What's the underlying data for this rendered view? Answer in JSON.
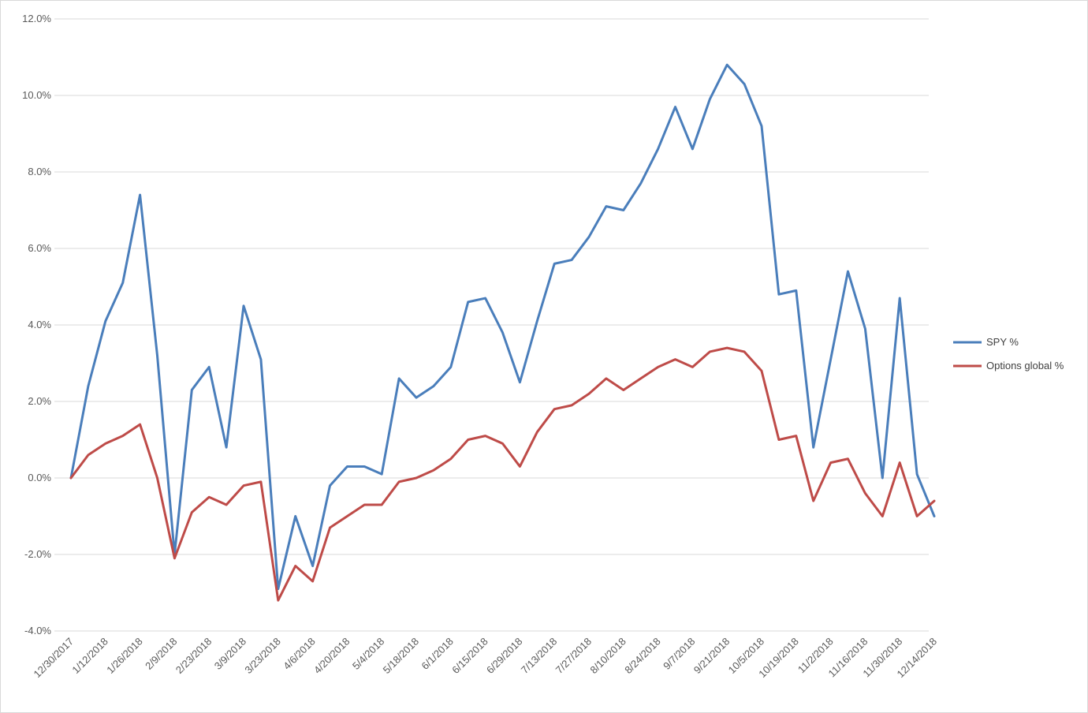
{
  "chart_data": {
    "type": "line",
    "title": "",
    "xlabel": "",
    "ylabel": "",
    "ylim": [
      -0.04,
      0.12
    ],
    "y_tick_step": 0.02,
    "y_tick_format": "percent_1dp",
    "grid": "horizontal",
    "legend_position": "right",
    "x_tick_labels": [
      "12/30/2017",
      "1/12/2018",
      "1/26/2018",
      "2/9/2018",
      "2/23/2018",
      "3/9/2018",
      "3/23/2018",
      "4/6/2018",
      "4/20/2018",
      "5/4/2018",
      "5/18/2018",
      "6/1/2018",
      "6/15/2018",
      "6/29/2018",
      "7/13/2018",
      "7/27/2018",
      "8/10/2018",
      "8/24/2018",
      "9/7/2018",
      "9/21/2018",
      "10/5/2018",
      "10/19/2018",
      "11/2/2018",
      "11/16/2018",
      "11/30/2018",
      "12/14/2018"
    ],
    "x": [
      "12/30/2017",
      "1/5/2018",
      "1/12/2018",
      "1/19/2018",
      "1/26/2018",
      "2/2/2018",
      "2/9/2018",
      "2/16/2018",
      "2/23/2018",
      "3/2/2018",
      "3/9/2018",
      "3/16/2018",
      "3/23/2018",
      "3/30/2018",
      "4/6/2018",
      "4/13/2018",
      "4/20/2018",
      "4/27/2018",
      "5/4/2018",
      "5/11/2018",
      "5/18/2018",
      "5/25/2018",
      "6/1/2018",
      "6/8/2018",
      "6/15/2018",
      "6/22/2018",
      "6/29/2018",
      "7/6/2018",
      "7/13/2018",
      "7/20/2018",
      "7/27/2018",
      "8/3/2018",
      "8/10/2018",
      "8/17/2018",
      "8/24/2018",
      "8/31/2018",
      "9/7/2018",
      "9/14/2018",
      "9/21/2018",
      "9/28/2018",
      "10/5/2018",
      "10/12/2018",
      "10/19/2018",
      "10/26/2018",
      "11/2/2018",
      "11/9/2018",
      "11/16/2018",
      "11/23/2018",
      "11/30/2018",
      "12/7/2018",
      "12/14/2018"
    ],
    "series": [
      {
        "name": "SPY %",
        "color": "#4a7ebb",
        "values": [
          0.0,
          0.024,
          0.041,
          0.051,
          0.074,
          0.032,
          -0.02,
          0.023,
          0.029,
          0.008,
          0.045,
          0.031,
          -0.029,
          -0.01,
          -0.023,
          -0.002,
          0.003,
          0.003,
          0.001,
          0.026,
          0.021,
          0.024,
          0.029,
          0.046,
          0.047,
          0.038,
          0.025,
          0.041,
          0.056,
          0.057,
          0.063,
          0.071,
          0.07,
          0.077,
          0.086,
          0.097,
          0.086,
          0.099,
          0.108,
          0.103,
          0.092,
          0.048,
          0.049,
          0.008,
          0.031,
          0.054,
          0.039,
          0.0,
          0.047,
          0.001,
          -0.01
        ]
      },
      {
        "name": "Options global %",
        "color": "#be4b48",
        "values": [
          0.0,
          0.006,
          0.009,
          0.011,
          0.014,
          0.0,
          -0.021,
          -0.009,
          -0.005,
          -0.007,
          -0.002,
          -0.001,
          -0.032,
          -0.023,
          -0.027,
          -0.013,
          -0.01,
          -0.007,
          -0.007,
          -0.001,
          0.0,
          0.002,
          0.005,
          0.01,
          0.011,
          0.009,
          0.003,
          0.012,
          0.018,
          0.019,
          0.022,
          0.026,
          0.023,
          0.026,
          0.029,
          0.031,
          0.029,
          0.033,
          0.034,
          0.033,
          0.028,
          0.01,
          0.011,
          -0.006,
          0.004,
          0.005,
          -0.004,
          -0.01,
          0.004,
          -0.01,
          -0.006
        ]
      }
    ]
  }
}
